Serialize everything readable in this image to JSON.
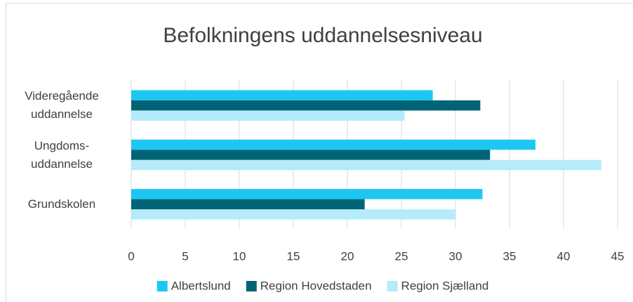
{
  "chart_data": {
    "type": "barh",
    "title": "Befolkningens uddannelsesniveau",
    "categories": [
      "Videregående uddannelse",
      "Ungdoms-uddannelse",
      "Grundskolen"
    ],
    "series": [
      {
        "name": "Albertslund",
        "color": "#1cc8f2",
        "values": [
          27.9,
          37.4,
          32.5
        ]
      },
      {
        "name": "Region Hovedstaden",
        "color": "#006476",
        "values": [
          32.3,
          33.2,
          21.6
        ]
      },
      {
        "name": "Region Sjælland",
        "color": "#b5ebfa",
        "values": [
          25.3,
          43.5,
          30.0
        ]
      }
    ],
    "xlim": [
      0,
      45
    ],
    "xticks": [
      0,
      5,
      10,
      15,
      20,
      25,
      30,
      35,
      40,
      45
    ],
    "grid": true,
    "legend": "bottom"
  }
}
